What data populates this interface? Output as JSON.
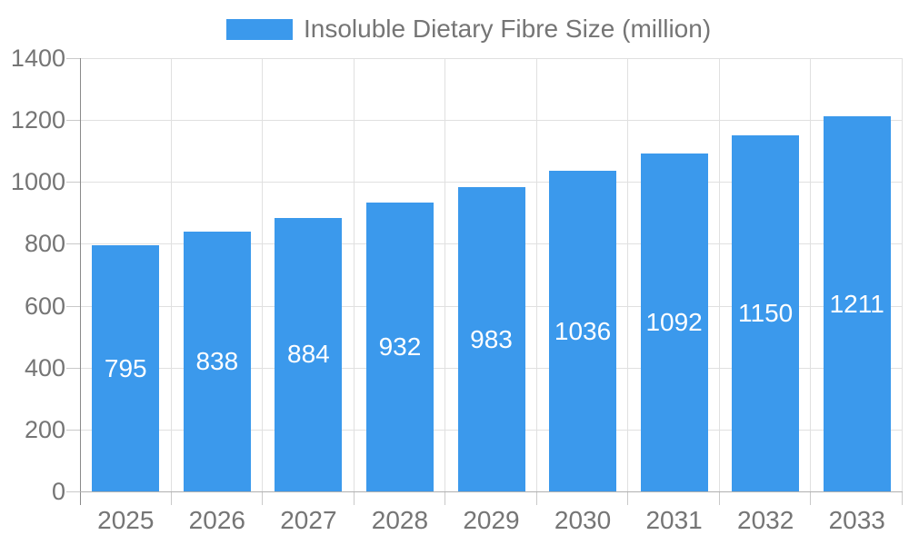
{
  "chart_data": {
    "type": "bar",
    "title": "",
    "legend": {
      "label": "Insoluble Dietary Fibre Size (million)",
      "position": "top"
    },
    "categories": [
      "2025",
      "2026",
      "2027",
      "2028",
      "2029",
      "2030",
      "2031",
      "2032",
      "2033"
    ],
    "series": [
      {
        "name": "Insoluble Dietary Fibre Size (million)",
        "values": [
          795,
          838,
          884,
          932,
          983,
          1036,
          1092,
          1150,
          1211
        ]
      }
    ],
    "bar_value_labels": [
      "795",
      "838",
      "884",
      "932",
      "983",
      "1036",
      "1092",
      "1150",
      "1211"
    ],
    "xlabel": "",
    "ylabel": "",
    "ylim": [
      0,
      1400
    ],
    "ytick_step": 200,
    "ytick_labels": [
      "0",
      "200",
      "400",
      "600",
      "800",
      "1000",
      "1200",
      "1400"
    ],
    "grid": true,
    "bar_labels_inside": true
  },
  "colors": {
    "bar": "#3b99ec",
    "bar_label": "#ffffff",
    "tick_text": "#757575",
    "grid": "#e0e0e0",
    "y_axis": "#8a8a8a",
    "x_axis": "#b0b0b0",
    "tick_stub": "#c9c9c9",
    "background": "#ffffff"
  }
}
